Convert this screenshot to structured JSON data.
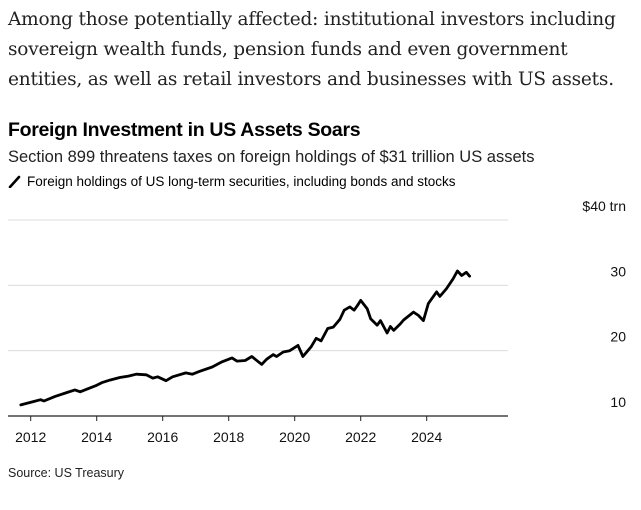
{
  "intro_text": "Among those potentially affected: institutional investors including sovereign wealth funds, pension funds and even government entities, as well as retail investors and businesses with US assets.",
  "source": "Source: US Treasury",
  "chart_data": {
    "type": "line",
    "title": "Foreign Investment in US Assets Soars",
    "subtitle": "Section 899 threatens taxes on foreign holdings of $31 trillion US assets",
    "legend_placement": "top-left",
    "series": [
      {
        "name": "Foreign holdings of US long-term securities, including bonds and stocks",
        "color": "#000000",
        "x": [
          2011.7,
          2012.08,
          2012.3,
          2012.4,
          2012.74,
          2013.1,
          2013.34,
          2013.5,
          2013.7,
          2014.0,
          2014.15,
          2014.4,
          2014.7,
          2014.96,
          2015.2,
          2015.5,
          2015.7,
          2015.85,
          2016.1,
          2016.3,
          2016.7,
          2016.9,
          2017.1,
          2017.5,
          2017.8,
          2018.1,
          2018.25,
          2018.5,
          2018.7,
          2018.9,
          2019.0,
          2019.15,
          2019.35,
          2019.45,
          2019.65,
          2019.85,
          2020.1,
          2020.25,
          2020.5,
          2020.65,
          2020.8,
          2021.0,
          2021.17,
          2021.37,
          2021.5,
          2021.67,
          2021.8,
          2021.9,
          2022.0,
          2022.2,
          2022.3,
          2022.5,
          2022.6,
          2022.8,
          2022.9,
          2023.0,
          2023.2,
          2023.3,
          2023.6,
          2023.75,
          2023.9,
          2024.05,
          2024.3,
          2024.4,
          2024.6,
          2024.8,
          2024.93,
          2025.06,
          2025.2,
          2025.3
        ],
        "values": [
          11.7,
          12.2,
          12.5,
          12.3,
          13.0,
          13.6,
          14.0,
          13.7,
          14.1,
          14.7,
          15.1,
          15.5,
          15.9,
          16.1,
          16.4,
          16.3,
          15.8,
          16.0,
          15.4,
          16.0,
          16.6,
          16.4,
          16.8,
          17.5,
          18.3,
          18.9,
          18.4,
          18.5,
          19.1,
          18.3,
          17.9,
          18.7,
          19.4,
          19.1,
          19.8,
          20.0,
          20.8,
          19.1,
          20.6,
          21.9,
          21.5,
          23.4,
          23.6,
          24.8,
          26.2,
          26.7,
          26.2,
          26.9,
          27.7,
          26.4,
          24.9,
          23.9,
          24.6,
          22.7,
          23.7,
          23.1,
          24.1,
          24.7,
          25.9,
          25.4,
          24.6,
          27.2,
          29.0,
          28.3,
          29.5,
          31.0,
          32.2,
          31.5,
          32.0,
          31.4
        ]
      }
    ],
    "x_ticks": [
      2012,
      2014,
      2016,
      2018,
      2020,
      2022,
      2024
    ],
    "x_tick_labels": [
      "2012",
      "2014",
      "2016",
      "2018",
      "2020",
      "2022",
      "2024"
    ],
    "y_ticks": [
      10,
      20,
      30,
      40
    ],
    "y_tick_labels": [
      "10",
      "20",
      "30",
      "$40 trn"
    ],
    "ylim": [
      10,
      40
    ],
    "xlim": [
      2011.6,
      2026.4
    ],
    "grid": true
  }
}
